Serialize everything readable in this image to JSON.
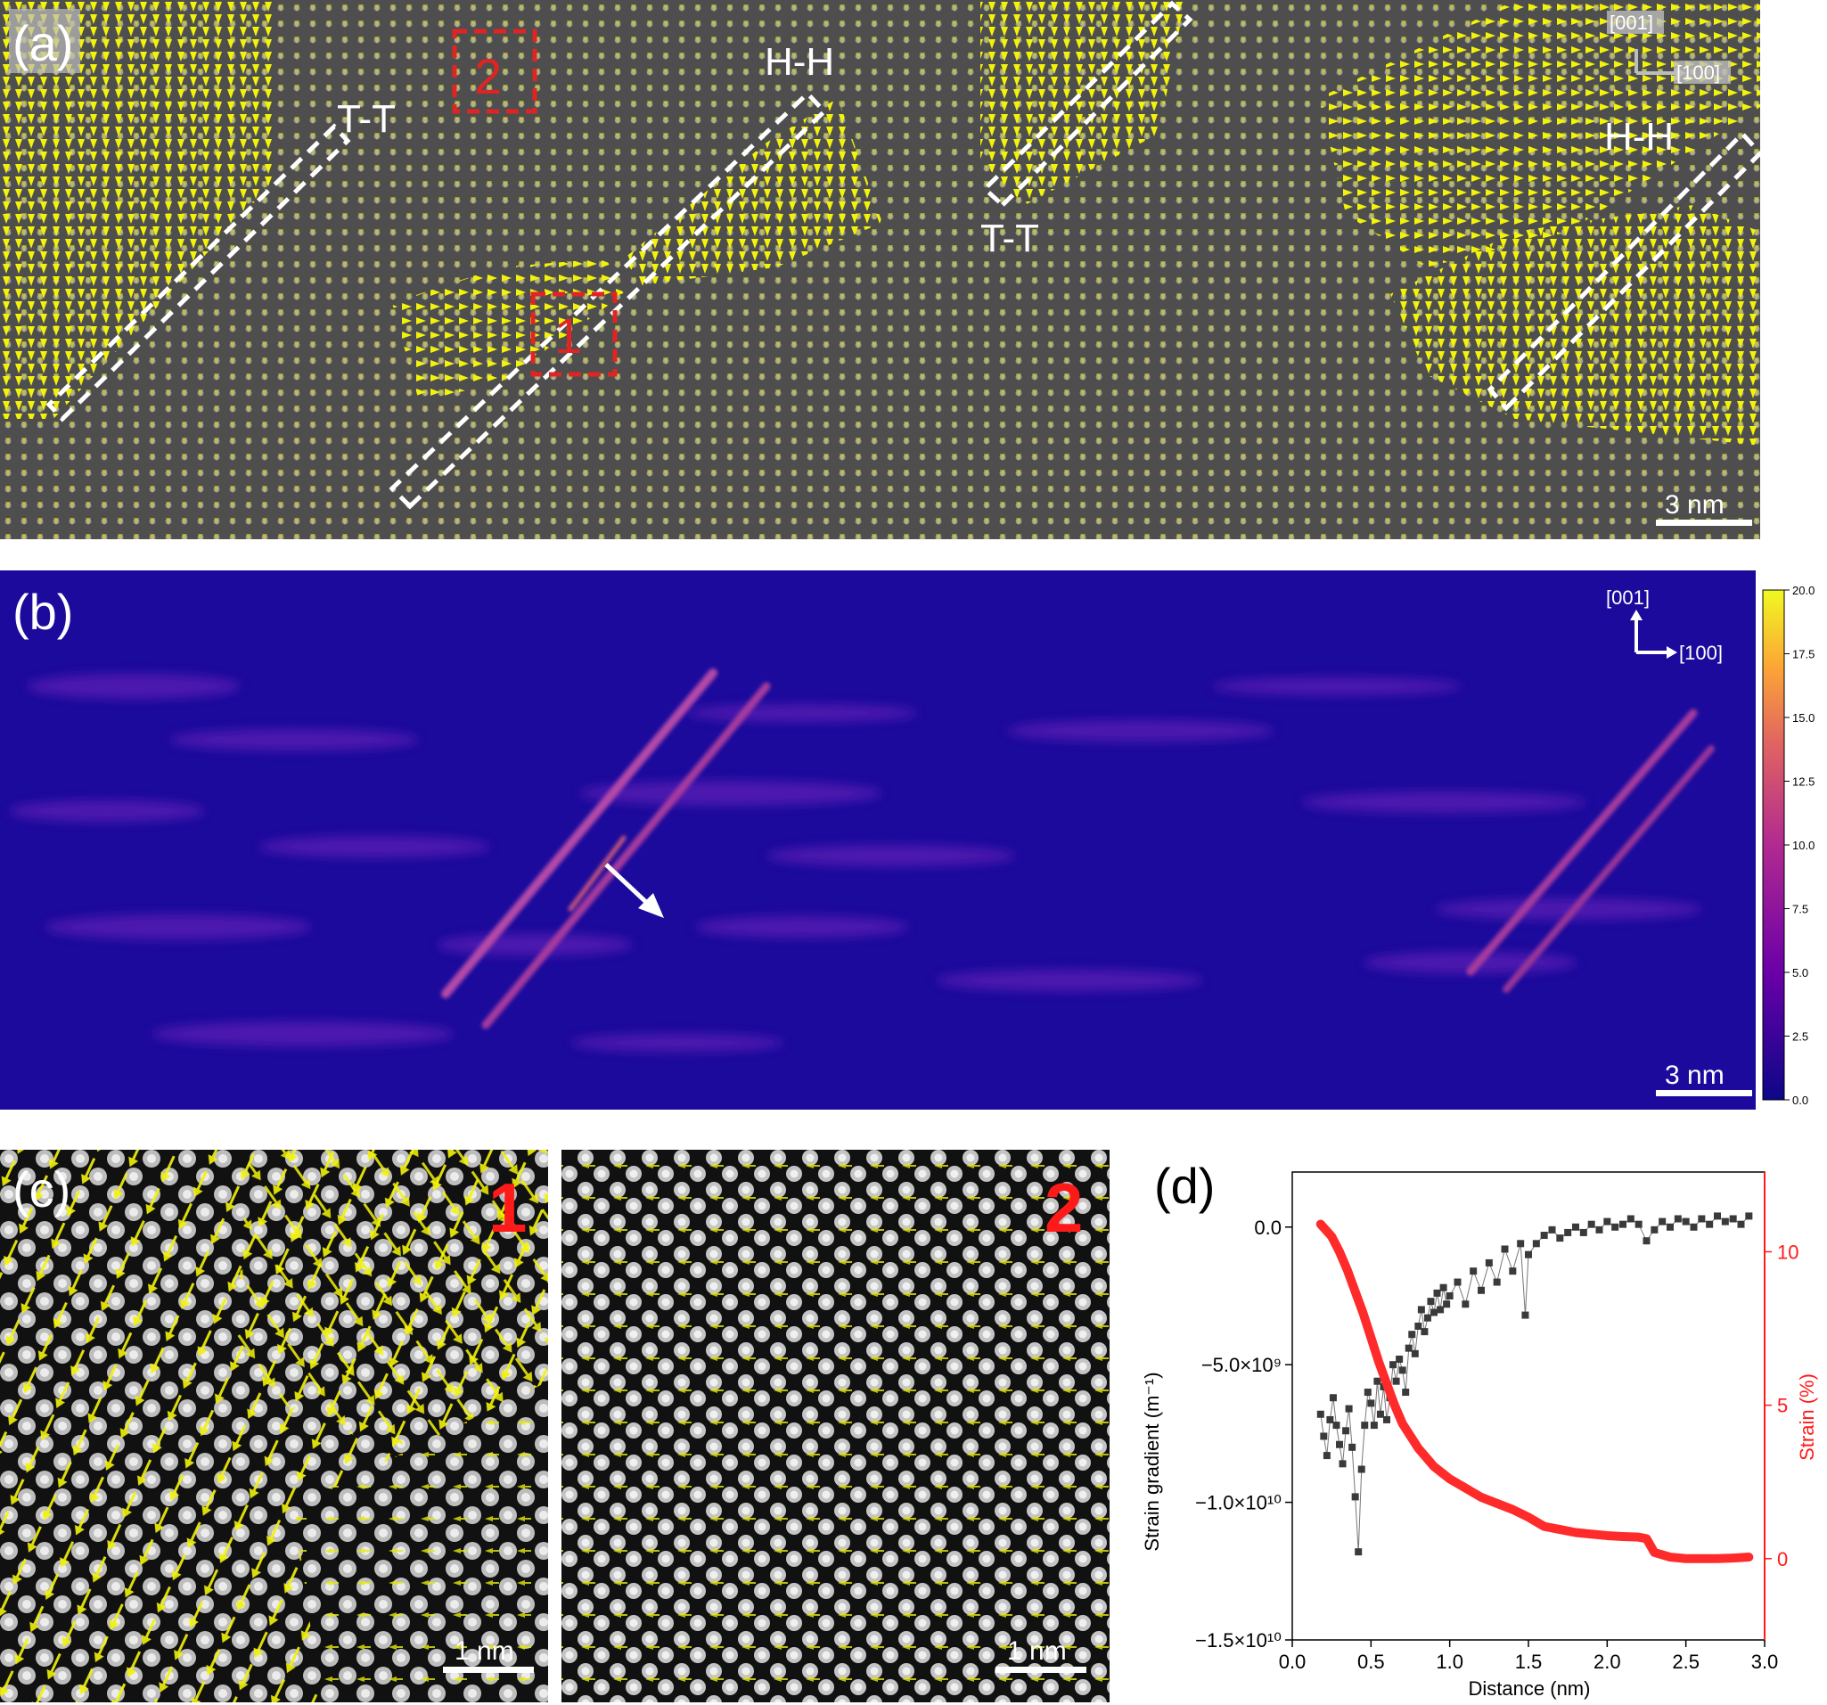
{
  "panel_a": {
    "label": "(a)",
    "walls": [
      "T-T",
      "H-H",
      "T-T",
      "H-H"
    ],
    "boxes": [
      "1",
      "2"
    ],
    "axis": {
      "up": "[001]",
      "right": "[100]"
    },
    "scale": "3 nm",
    "colors": {
      "arrows": "#f2f20a",
      "box": "#e02424",
      "wall": "#ffffff"
    }
  },
  "panel_b": {
    "label": "(b)",
    "axis": {
      "up": "[001]",
      "right": "[100]"
    },
    "scale": "3 nm",
    "colorbar_ticks": [
      "20.0",
      "17.5",
      "15.0",
      "12.5",
      "10.0",
      "7.5",
      "5.0",
      "2.5",
      "0.0"
    ],
    "colormap": [
      "#0c0788",
      "#6a00a8",
      "#b12a90",
      "#e16462",
      "#fca636",
      "#f0f921"
    ]
  },
  "panel_c": {
    "label": "(c)",
    "left_number": "1",
    "right_number": "2",
    "scale_left": "1 nm",
    "scale_right": "1 nm"
  },
  "panel_d": {
    "label": "(d)",
    "x_ticks": [
      "0.0",
      "0.5",
      "1.0",
      "1.5",
      "2.0",
      "2.5",
      "3.0"
    ],
    "y_left_ticks": [
      "0.0",
      "−5.0×10⁹",
      "−1.0×10¹⁰",
      "−1.5×10¹⁰"
    ],
    "y_right_ticks": [
      "10",
      "5",
      "0"
    ],
    "x_label": "Distance (nm)",
    "y_left_label": "Strain gradient (m⁻¹)",
    "y_right_label": "Strain (%)"
  },
  "chart_data": {
    "type": "scatter",
    "xlabel": "Distance (nm)",
    "ylabel": "Strain gradient (m⁻¹)",
    "y2label": "Strain (%)",
    "xlim": [
      0.0,
      3.0
    ],
    "ylim": [
      -15000000000.0,
      2000000000.0
    ],
    "y2lim": [
      -2.65,
      12.6
    ],
    "series": [
      {
        "axis": "left",
        "color": "#3a3a3a",
        "marker": "square",
        "x": [
          0.18,
          0.2,
          0.22,
          0.24,
          0.26,
          0.28,
          0.3,
          0.32,
          0.34,
          0.36,
          0.38,
          0.4,
          0.42,
          0.44,
          0.46,
          0.48,
          0.5,
          0.52,
          0.54,
          0.56,
          0.58,
          0.6,
          0.62,
          0.64,
          0.66,
          0.68,
          0.7,
          0.72,
          0.74,
          0.76,
          0.78,
          0.8,
          0.82,
          0.84,
          0.86,
          0.88,
          0.9,
          0.92,
          0.94,
          0.96,
          0.98,
          1.0,
          1.05,
          1.1,
          1.15,
          1.2,
          1.25,
          1.3,
          1.35,
          1.4,
          1.45,
          1.48,
          1.5,
          1.55,
          1.6,
          1.65,
          1.7,
          1.75,
          1.8,
          1.85,
          1.9,
          1.95,
          2.0,
          2.05,
          2.1,
          2.15,
          2.2,
          2.25,
          2.3,
          2.35,
          2.4,
          2.45,
          2.5,
          2.55,
          2.6,
          2.65,
          2.7,
          2.75,
          2.8,
          2.85,
          2.9
        ],
        "y": [
          -6800000000.0,
          -7600000000.0,
          -8300000000.0,
          -7000000000.0,
          -6200000000.0,
          -7200000000.0,
          -7900000000.0,
          -8600000000.0,
          -7400000000.0,
          -6600000000.0,
          -8000000000.0,
          -9800000000.0,
          -11800000000.0,
          -8800000000.0,
          -7200000000.0,
          -6000000000.0,
          -6400000000.0,
          -7200000000.0,
          -5600000000.0,
          -6800000000.0,
          -5800000000.0,
          -7000000000.0,
          -6200000000.0,
          -5000000000.0,
          -5600000000.0,
          -4800000000.0,
          -5200000000.0,
          -6000000000.0,
          -4400000000.0,
          -3900000000.0,
          -4600000000.0,
          -3600000000.0,
          -3000000000.0,
          -3800000000.0,
          -3300000000.0,
          -2700000000.0,
          -3100000000.0,
          -2400000000.0,
          -3000000000.0,
          -2200000000.0,
          -2800000000.0,
          -2500000000.0,
          -2000000000.0,
          -2800000000.0,
          -1600000000.0,
          -2300000000.0,
          -1300000000.0,
          -2000000000.0,
          -800000000.0,
          -1600000000.0,
          -600000000.0,
          -3200000000.0,
          -1000000000.0,
          -600000000.0,
          -300000000.0,
          -100000000.0,
          -400000000.0,
          -200000000.0,
          0.0,
          -200000000.0,
          100000000.0,
          -100000000.0,
          200000000.0,
          0.0,
          100000000.0,
          300000000.0,
          100000000.0,
          -500000000.0,
          -100000000.0,
          200000000.0,
          0.0,
          300000000.0,
          200000000.0,
          0.0,
          300000000.0,
          100000000.0,
          400000000.0,
          200000000.0,
          300000000.0,
          100000000.0,
          400000000.0
        ]
      },
      {
        "axis": "right",
        "color": "#ff2a2a",
        "marker": "line",
        "x": [
          0.18,
          0.25,
          0.3,
          0.35,
          0.4,
          0.45,
          0.5,
          0.55,
          0.6,
          0.65,
          0.7,
          0.75,
          0.8,
          0.85,
          0.9,
          0.95,
          1.0,
          1.1,
          1.2,
          1.3,
          1.4,
          1.5,
          1.6,
          1.7,
          1.8,
          1.9,
          2.0,
          2.1,
          2.2,
          2.25,
          2.3,
          2.4,
          2.5,
          2.6,
          2.7,
          2.8,
          2.9
        ],
        "y": [
          10.9,
          10.5,
          10.0,
          9.4,
          8.7,
          8.0,
          7.2,
          6.4,
          5.7,
          5.0,
          4.4,
          4.0,
          3.6,
          3.3,
          3.0,
          2.8,
          2.6,
          2.3,
          2.0,
          1.8,
          1.6,
          1.35,
          1.05,
          0.95,
          0.85,
          0.8,
          0.75,
          0.72,
          0.7,
          0.65,
          0.2,
          0.05,
          0.0,
          0.0,
          0.0,
          0.02,
          0.05
        ]
      }
    ]
  }
}
